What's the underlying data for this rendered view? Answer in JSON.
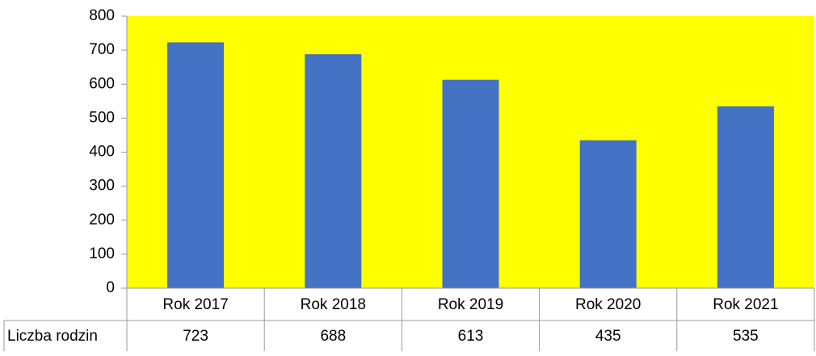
{
  "chart_data": {
    "type": "bar",
    "categories": [
      "Rok 2017",
      "Rok 2018",
      "Rok 2019",
      "Rok 2020",
      "Rok 2021"
    ],
    "series": [
      {
        "name": "Liczba rodzin",
        "color": "#4472c4",
        "values": [
          723,
          688,
          613,
          435,
          535
        ]
      }
    ],
    "ylim": [
      0,
      800
    ],
    "yticks": [
      0,
      100,
      200,
      300,
      400,
      500,
      600,
      700,
      800
    ],
    "grid": false,
    "plot_background": "#ffff00",
    "data_table": true
  }
}
